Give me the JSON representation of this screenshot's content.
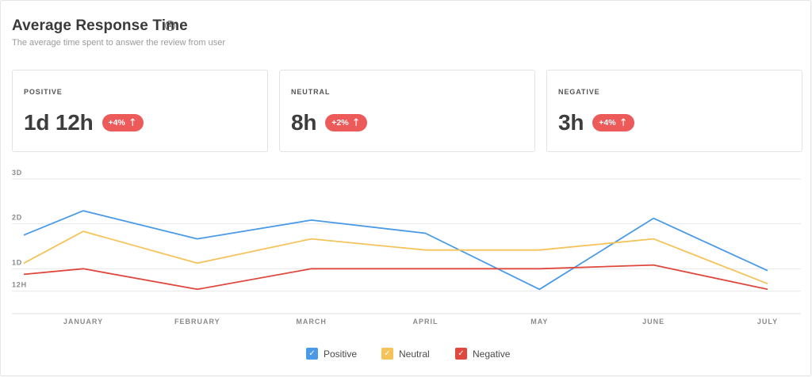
{
  "header": {
    "title": "Average Response Time",
    "info_icon": "info-icon",
    "subtitle": "The average time spent to answer the review from user"
  },
  "stats": [
    {
      "label": "POSITIVE",
      "value": "1d 12h",
      "badge": "+4%",
      "badge_icon": "arrow-up-icon"
    },
    {
      "label": "NEUTRAL",
      "value": "8h",
      "badge": "+2%",
      "badge_icon": "arrow-up-icon"
    },
    {
      "label": "NEGATIVE",
      "value": "3h",
      "badge": "+4%",
      "badge_icon": "arrow-up-icon"
    }
  ],
  "colors": {
    "positive": "#4a9ae8",
    "neutral": "#f5c35a",
    "negative": "#e0473d",
    "badge": "#ec5a5a",
    "grid": "#e8e8e8"
  },
  "chart_data": {
    "type": "line",
    "categories": [
      "JANUARY",
      "FEBRUARY",
      "MARCH",
      "APRIL",
      "MAY",
      "JUNE",
      "JULY"
    ],
    "yticks": [
      {
        "label": "3D",
        "value": 72
      },
      {
        "label": "2D",
        "value": 48
      },
      {
        "label": "1D",
        "value": 24
      },
      {
        "label": "12H",
        "value": 12
      }
    ],
    "ylim": [
      0,
      72
    ],
    "y_unit": "hours",
    "grid": true,
    "legend_position": "bottom-center",
    "series": [
      {
        "name": "Positive",
        "color": "#4a9ae8",
        "start": 42,
        "values": [
          55,
          40,
          50,
          43,
          13,
          51,
          23
        ]
      },
      {
        "name": "Neutral",
        "color": "#f5c35a",
        "start": 27,
        "values": [
          44,
          27,
          40,
          34,
          34,
          40,
          16
        ]
      },
      {
        "name": "Negative",
        "color": "#e0473d",
        "start": 21,
        "values": [
          24,
          13,
          24,
          24,
          24,
          26,
          13
        ]
      }
    ]
  }
}
